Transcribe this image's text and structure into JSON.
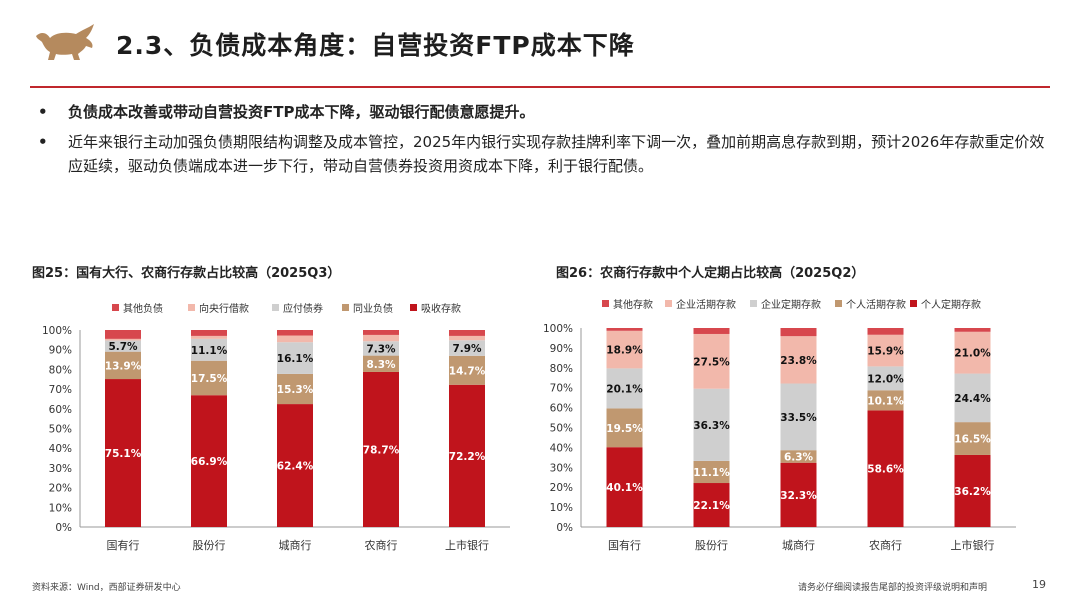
{
  "header": {
    "title": "2.3、负债成本角度：自营投资FTP成本下降",
    "logo_icon": "bull-icon",
    "accent_color": "#c0272d"
  },
  "bullets": [
    "负债成本改善或带动自营投资FTP成本下降，驱动银行配债意愿提升。",
    "近年来银行主动加强负债期限结构调整及成本管控，2025年内银行实现存款挂牌利率下调一次，叠加前期高息存款到期，预计2026年存款重定价效应延续，驱动负债端成本进一步下行，带动自营债券投资用资成本下降，利于银行配债。"
  ],
  "footer": {
    "source": "资料来源：Wind，西部证券研发中心",
    "disclaimer": "请务必仔细阅读报告尾部的投资评级说明和声明",
    "page": "19"
  },
  "chart_data": [
    {
      "type": "bar",
      "stacked": true,
      "title": "图25：国有大行、农商行存款占比较高（2025Q3）",
      "categories": [
        "国有行",
        "股份行",
        "城商行",
        "农商行",
        "上市银行"
      ],
      "ylim": [
        0,
        100
      ],
      "yticks": [
        "0%",
        "10%",
        "20%",
        "30%",
        "40%",
        "50%",
        "60%",
        "70%",
        "80%",
        "90%",
        "100%"
      ],
      "series": [
        {
          "name": "吸收存款",
          "color": "#c0141c",
          "values": [
            75.1,
            66.9,
            62.4,
            78.7,
            72.2
          ],
          "labels": [
            "75.1%",
            "66.9%",
            "62.4%",
            "78.7%",
            "72.2%"
          ],
          "label_color": "#ffffff"
        },
        {
          "name": "同业负债",
          "color": "#c09870",
          "values": [
            13.9,
            17.5,
            15.3,
            8.3,
            14.7
          ],
          "labels": [
            "13.9%",
            "17.5%",
            "15.3%",
            "8.3%",
            "14.7%"
          ],
          "label_color": "#ffffff"
        },
        {
          "name": "应付债券",
          "color": "#cfcfcf",
          "values": [
            5.7,
            11.1,
            16.1,
            7.3,
            7.9
          ],
          "labels": [
            "5.7%",
            "11.1%",
            "16.1%",
            "7.3%",
            "7.9%"
          ],
          "label_color": "#111111"
        },
        {
          "name": "向央行借款",
          "color": "#f2b8ab",
          "values": [
            0.8,
            1.5,
            3.4,
            3.2,
            2.2
          ],
          "labels": [
            "",
            "",
            "",
            "",
            ""
          ],
          "label_color": "#111111"
        },
        {
          "name": "其他负债",
          "color": "#d7474d",
          "values": [
            4.5,
            3.0,
            2.8,
            2.5,
            3.0
          ],
          "labels": [
            "",
            "",
            "",
            "",
            ""
          ],
          "label_color": "#111111"
        }
      ],
      "legend_order": [
        "其他负债",
        "向央行借款",
        "应付债券",
        "同业负债",
        "吸收存款"
      ]
    },
    {
      "type": "bar",
      "stacked": true,
      "title": "图26：农商行存款中个人定期占比较高（2025Q2）",
      "categories": [
        "国有行",
        "股份行",
        "城商行",
        "农商行",
        "上市银行"
      ],
      "ylim": [
        0,
        100
      ],
      "yticks": [
        "0%",
        "10%",
        "20%",
        "30%",
        "40%",
        "50%",
        "60%",
        "70%",
        "80%",
        "90%",
        "100%"
      ],
      "series": [
        {
          "name": "个人定期存款",
          "color": "#c0141c",
          "values": [
            40.1,
            22.1,
            32.3,
            58.6,
            36.2
          ],
          "labels": [
            "40.1%",
            "22.1%",
            "32.3%",
            "58.6%",
            "36.2%"
          ],
          "label_color": "#ffffff"
        },
        {
          "name": "个人活期存款",
          "color": "#c09870",
          "values": [
            19.5,
            11.1,
            6.3,
            10.1,
            16.5
          ],
          "labels": [
            "19.5%",
            "11.1%",
            "6.3%",
            "10.1%",
            "16.5%"
          ],
          "label_color": "#ffffff"
        },
        {
          "name": "企业定期存款",
          "color": "#cfcfcf",
          "values": [
            20.1,
            36.3,
            33.5,
            12.0,
            24.4
          ],
          "labels": [
            "20.1%",
            "36.3%",
            "33.5%",
            "12.0%",
            "24.4%"
          ],
          "label_color": "#111111"
        },
        {
          "name": "企业活期存款",
          "color": "#f2b8ab",
          "values": [
            18.9,
            27.5,
            23.8,
            15.9,
            21.0
          ],
          "labels": [
            "18.9%",
            "27.5%",
            "23.8%",
            "15.9%",
            "21.0%"
          ],
          "label_color": "#111111"
        },
        {
          "name": "其他存款",
          "color": "#d7474d",
          "values": [
            1.4,
            3.0,
            4.1,
            3.4,
            1.9
          ],
          "labels": [
            "",
            "",
            "",
            "",
            ""
          ],
          "label_color": "#111111"
        }
      ],
      "legend_order": [
        "其他存款",
        "企业活期存款",
        "企业定期存款",
        "个人活期存款",
        "个人定期存款"
      ]
    }
  ]
}
